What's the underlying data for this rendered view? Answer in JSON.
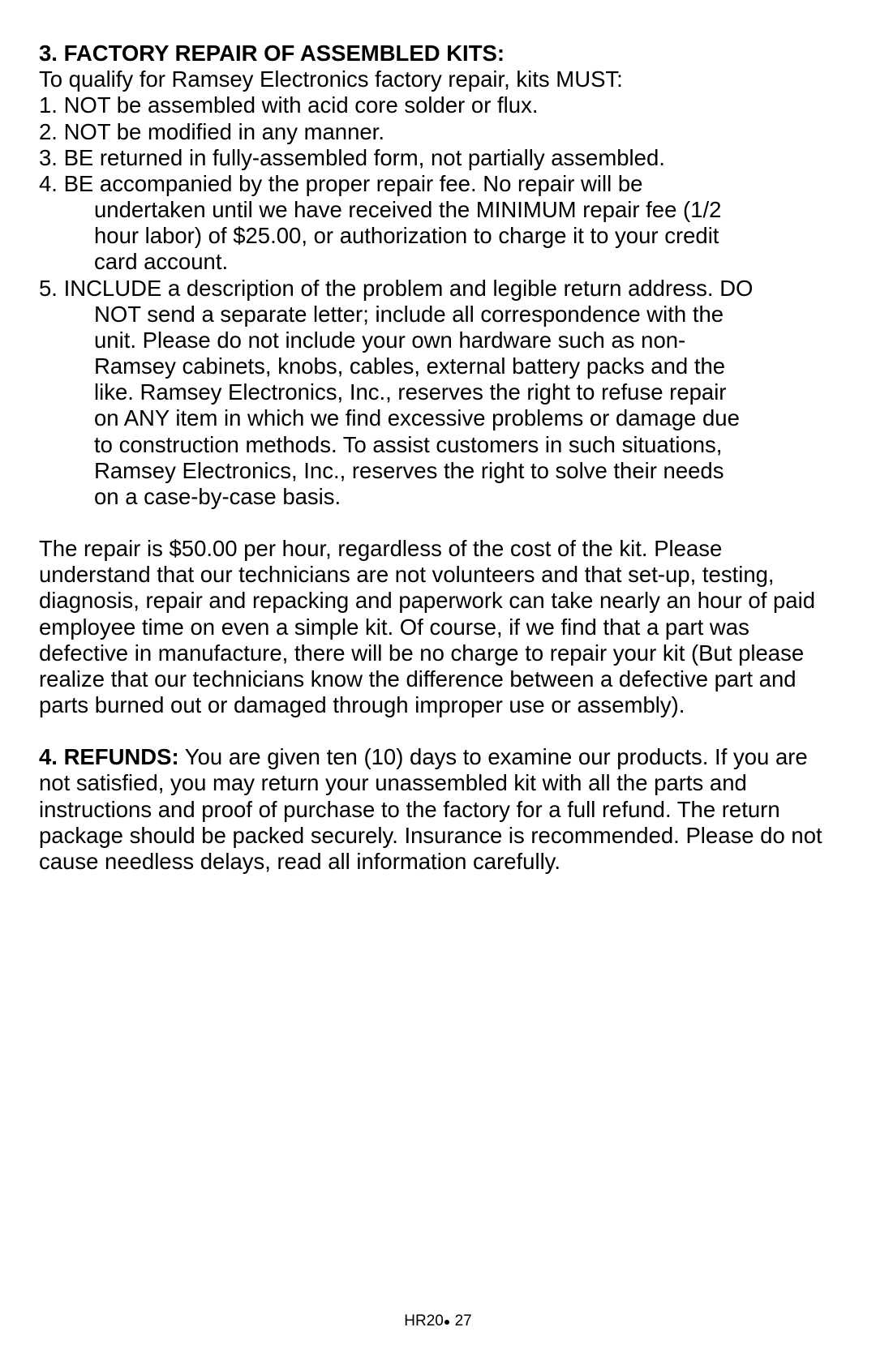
{
  "section3": {
    "heading": "3. FACTORY REPAIR OF ASSEMBLED KITS:",
    "intro": "To qualify for Ramsey Electronics factory repair, kits MUST:",
    "item1": "1. NOT be assembled with acid core solder or flux.",
    "item2": "2. NOT be modified in any manner.",
    "item3": "3. BE returned in fully-assembled form, not partially assembled.",
    "item4_line1": "4. BE accompanied by the proper repair fee. No repair will be",
    "item4_line2": "undertaken until we have received the MINIMUM repair fee (1/2",
    "item4_line3": "hour labor) of $25.00, or authorization to charge it to your credit",
    "item4_line4": "card account.",
    "item5_line1": "5. INCLUDE a description of the problem and legible return address. DO",
    "item5_line2": "NOT send a separate letter; include all correspondence with the",
    "item5_line3": "unit. Please do not include your own hardware such as non-",
    "item5_line4": "Ramsey cabinets, knobs, cables, external battery packs and the",
    "item5_line5": "like. Ramsey Electronics, Inc., reserves the right to refuse repair",
    "item5_line6": "on ANY item in which we find excessive problems or damage due",
    "item5_line7": "to construction  methods. To assist customers in such situations,",
    "item5_line8": "Ramsey Electronics, Inc., reserves the right to solve their needs",
    "item5_line9": "on a case-by-case basis."
  },
  "repair_paragraph": "The repair is $50.00 per hour, regardless of the cost of the kit. Please understand that our technicians are not volunteers and that set-up, testing, diagnosis, repair and repacking and paperwork can take nearly an hour of paid employee time on even a simple kit. Of course, if we find that a part was defective in manufacture, there will be no charge to repair your kit (But please realize that our technicians know the difference between a defective part and parts burned out or damaged through improper use or assembly).",
  "section4": {
    "heading": "4. REFUNDS:",
    "body": " You are given ten (10) days to examine our products. If you are not satisfied, you may return your unassembled kit with all the parts and instructions and proof of purchase to the factory for a full refund. The return package should be packed securely. Insurance is recommended. Please do not cause needless delays, read all information carefully."
  },
  "footer": {
    "doc": "HR20",
    "page": " 27"
  }
}
